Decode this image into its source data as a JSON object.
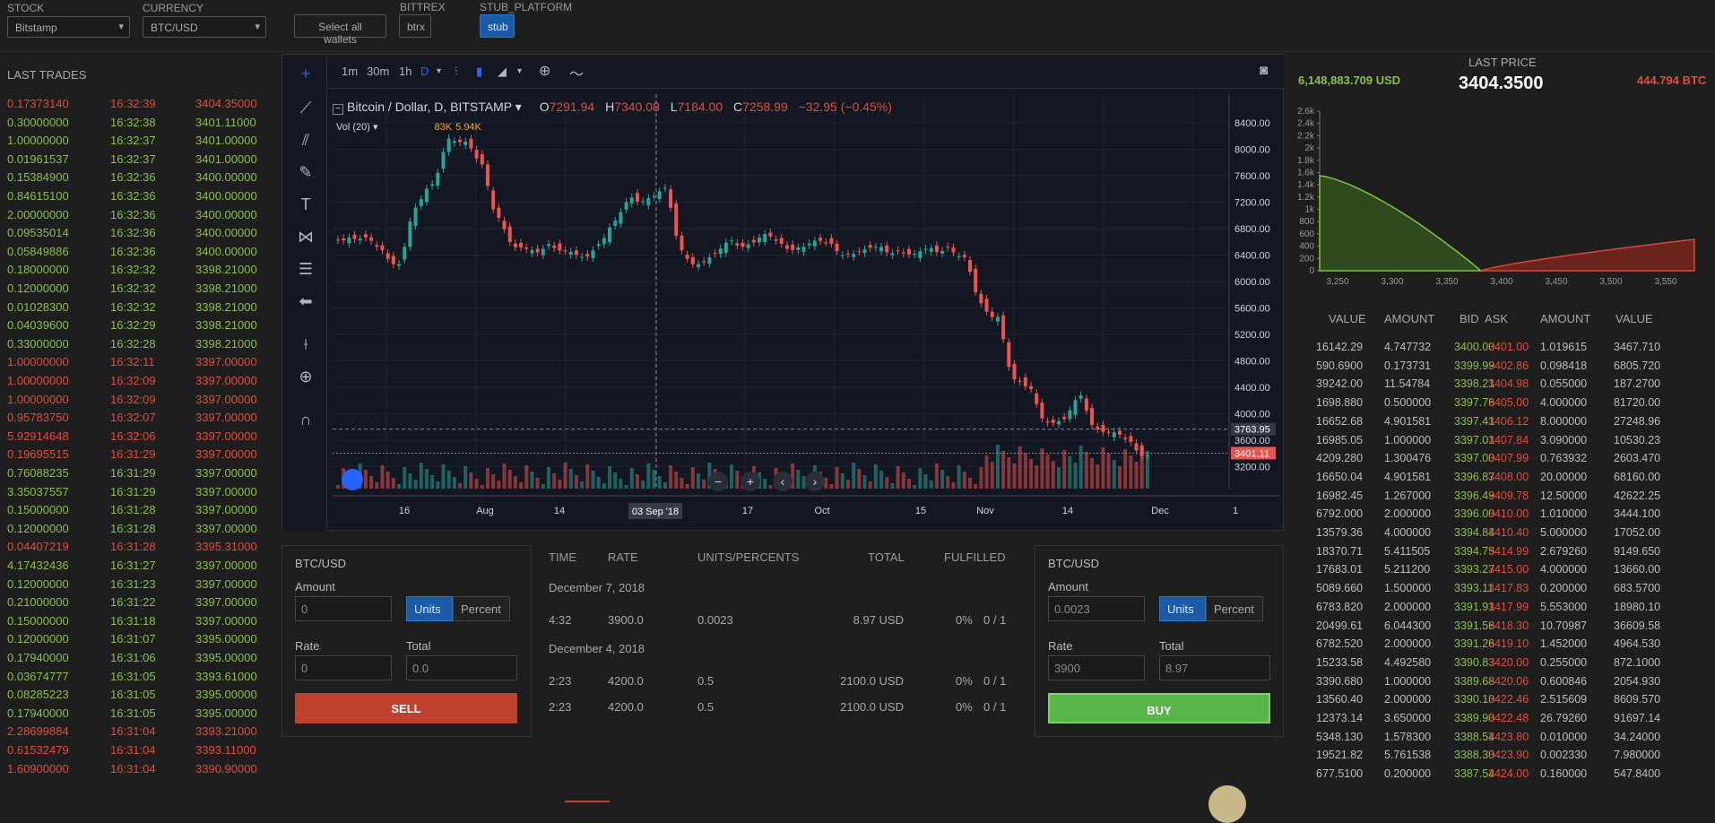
{
  "top": {
    "stock_label": "STOCK",
    "stock_value": "Bitstamp",
    "currency_label": "CURRENCY",
    "currency_value": "BTC/USD",
    "select_wallets": "Select all wallets",
    "bittrex_label": "BITTREX",
    "bittrex_btn": "btrx",
    "stub_label": "STUB_PLATFORM",
    "stub_btn": "stub"
  },
  "trades": {
    "title": "LAST TRADES",
    "rows": [
      [
        "0.17373140",
        "16:32:39",
        "3404.35000",
        "r"
      ],
      [
        "0.30000000",
        "16:32:38",
        "3401.11000",
        "g"
      ],
      [
        "1.00000000",
        "16:32:37",
        "3401.00000",
        "g"
      ],
      [
        "0.01961537",
        "16:32:37",
        "3401.00000",
        "g"
      ],
      [
        "0.15384900",
        "16:32:36",
        "3400.00000",
        "g"
      ],
      [
        "0.84615100",
        "16:32:36",
        "3400.00000",
        "g"
      ],
      [
        "2.00000000",
        "16:32:36",
        "3400.00000",
        "g"
      ],
      [
        "0.09535014",
        "16:32:36",
        "3400.00000",
        "g"
      ],
      [
        "0.05849886",
        "16:32:36",
        "3400.00000",
        "g"
      ],
      [
        "0.18000000",
        "16:32:32",
        "3398.21000",
        "g"
      ],
      [
        "0.12000000",
        "16:32:32",
        "3398.21000",
        "g"
      ],
      [
        "0.01028300",
        "16:32:32",
        "3398.21000",
        "g"
      ],
      [
        "0.04039600",
        "16:32:29",
        "3398.21000",
        "g"
      ],
      [
        "0.33000000",
        "16:32:28",
        "3398.21000",
        "g"
      ],
      [
        "1.00000000",
        "16:32:11",
        "3397.00000",
        "r"
      ],
      [
        "1.00000000",
        "16:32:09",
        "3397.00000",
        "r"
      ],
      [
        "1.00000000",
        "16:32:09",
        "3397.00000",
        "r"
      ],
      [
        "0.95783750",
        "16:32:07",
        "3397.00000",
        "r"
      ],
      [
        "5.92914648",
        "16:32:06",
        "3397.00000",
        "r"
      ],
      [
        "0.19695515",
        "16:31:29",
        "3397.00000",
        "r"
      ],
      [
        "0.76088235",
        "16:31:29",
        "3397.00000",
        "g"
      ],
      [
        "3.35037557",
        "16:31:29",
        "3397.00000",
        "g"
      ],
      [
        "0.15000000",
        "16:31:28",
        "3397.00000",
        "g"
      ],
      [
        "0.12000000",
        "16:31:28",
        "3397.00000",
        "g"
      ],
      [
        "0.04407219",
        "16:31:28",
        "3395.31000",
        "r"
      ],
      [
        "4.17432436",
        "16:31:27",
        "3397.00000",
        "g"
      ],
      [
        "0.12000000",
        "16:31:23",
        "3397.00000",
        "g"
      ],
      [
        "0.21000000",
        "16:31:22",
        "3397.00000",
        "g"
      ],
      [
        "0.15000000",
        "16:31:18",
        "3397.00000",
        "g"
      ],
      [
        "0.12000000",
        "16:31:07",
        "3395.00000",
        "g"
      ],
      [
        "0.17940000",
        "16:31:06",
        "3395.00000",
        "g"
      ],
      [
        "0.03674777",
        "16:31:05",
        "3393.61000",
        "g"
      ],
      [
        "0.08285223",
        "16:31:05",
        "3395.00000",
        "g"
      ],
      [
        "0.17940000",
        "16:31:05",
        "3395.00000",
        "g"
      ],
      [
        "2.28699884",
        "16:31:04",
        "3393.21000",
        "r"
      ],
      [
        "0.61532479",
        "16:31:04",
        "3393.11000",
        "r"
      ],
      [
        "1.60900000",
        "16:31:04",
        "3390.90000",
        "r"
      ]
    ]
  },
  "chart": {
    "tf": [
      "1m",
      "30m",
      "1h",
      "D"
    ],
    "title": "Bitcoin / Dollar, D, BITSTAMP",
    "o_label": "O",
    "o": "7291.94",
    "h_label": "H",
    "h": "7340.08",
    "l_label": "L",
    "l": "7184.00",
    "c_label": "C",
    "c": "7258.99",
    "chg": "−32.95 (−0.45%)",
    "vol_label": "Vol (20)",
    "vol": "5.94K",
    "vol_cross": "83K",
    "price_labels": [
      "8400.00",
      "8000.00",
      "7600.00",
      "7200.00",
      "6800.00",
      "6400.00",
      "6000.00",
      "5600.00",
      "5200.00",
      "4800.00",
      "4400.00",
      "4000.00",
      "3600.00",
      "3200.00"
    ],
    "cross_price": "3763.95",
    "last_price": "3401.11",
    "date_labels": [
      "16",
      "Aug",
      "14",
      "17",
      "Oct",
      "15",
      "Nov",
      "14",
      "Dec"
    ],
    "cross_date": "03 Sep '18",
    "axis_edge": "1"
  },
  "chart_data": {
    "type": "candlestick",
    "title": "Bitcoin / Dollar, D, BITSTAMP",
    "xlabel": "",
    "ylabel": "",
    "ylim": [
      3000,
      8700
    ],
    "x_ticks": [
      "16",
      "Aug",
      "14",
      "03 Sep '18",
      "17",
      "Oct",
      "15",
      "Nov",
      "14",
      "Dec"
    ],
    "close_approx": [
      6700,
      6650,
      6400,
      6300,
      7100,
      7400,
      8200,
      8100,
      7700,
      7000,
      6500,
      6400,
      6600,
      6450,
      6300,
      6600,
      6900,
      7200,
      7300,
      7400,
      6400,
      6300,
      6400,
      6550,
      6600,
      6700,
      6500,
      6550,
      6600,
      6500,
      6450,
      6470,
      6450,
      6500,
      6400,
      6430,
      6550,
      6350,
      5600,
      5500,
      4500,
      4300,
      3900,
      3900,
      4200,
      3800,
      3700,
      3500,
      3400
    ],
    "crosshair_price": 3763.95,
    "last_price": 3401.11
  },
  "sell": {
    "title": "BTC/USD",
    "amount_label": "Amount",
    "amount": "0",
    "units": "Units",
    "percent": "Percent",
    "rate_label": "Rate",
    "rate": "0",
    "total_label": "Total",
    "total": "0.0",
    "btn": "SELL"
  },
  "buy": {
    "title": "BTC/USD",
    "amount_label": "Amount",
    "amount": "0.0023",
    "units": "Units",
    "percent": "Percent",
    "rate_label": "Rate",
    "rate": "3900",
    "total_label": "Total",
    "total": "8.97",
    "btn": "BUY"
  },
  "history": {
    "headers": [
      "TIME",
      "RATE",
      "UNITS/PERCENTS",
      "TOTAL",
      "FULFILLED"
    ],
    "d1": "December 7, 2018",
    "r1": [
      "4:32",
      "3900.0",
      "0.0023",
      "8.97 USD",
      "0%",
      "0 / 1"
    ],
    "d2": "December 4, 2018",
    "r2": [
      "2:23",
      "4200.0",
      "0.5",
      "2100.0 USD",
      "0%",
      "0 / 1"
    ],
    "r3": [
      "2:23",
      "4200.0",
      "0.5",
      "2100.0 USD",
      "0%",
      "0 / 1"
    ]
  },
  "right": {
    "usd": "6,148,883.709 USD",
    "last_label": "LAST PRICE",
    "last": "3404.3500",
    "btc": "444.794 BTC",
    "depth_y": [
      "2.6k",
      "2.4k",
      "2.2k",
      "2k",
      "1.8k",
      "1.6k",
      "1.4k",
      "1.2k",
      "1k",
      "800",
      "600",
      "400",
      "200",
      "0"
    ],
    "depth_x": [
      "3,250",
      "3,300",
      "3,350",
      "3,400",
      "3,450",
      "3,500",
      "3,550"
    ],
    "headers": [
      "VALUE",
      "AMOUNT",
      "BID",
      "ASK",
      "AMOUNT",
      "VALUE"
    ],
    "rows": [
      [
        "16142.29",
        "4.747732",
        "3400.00",
        "3401.00",
        "1.019615",
        "3467.710"
      ],
      [
        "590.6900",
        "0.173731",
        "3399.99",
        "3402.86",
        "0.098418",
        "6805.720"
      ],
      [
        "39242.00",
        "11.54784",
        "3398.21",
        "3404.98",
        "0.055000",
        "187.2700"
      ],
      [
        "1698.880",
        "0.500000",
        "3397.76",
        "3405.00",
        "4.000000",
        "81720.00"
      ],
      [
        "16652.68",
        "4.901581",
        "3397.41",
        "3406.12",
        "8.000000",
        "27248.96"
      ],
      [
        "16985.05",
        "1.000000",
        "3397.01",
        "3407.84",
        "3.090000",
        "10530.23"
      ],
      [
        "4209.280",
        "1.300476",
        "3397.00",
        "3407.99",
        "0.763932",
        "2603.470"
      ],
      [
        "16650.04",
        "4.901581",
        "3396.87",
        "3408.00",
        "20.00000",
        "68160.00"
      ],
      [
        "16982.45",
        "1.267000",
        "3396.49",
        "3409.78",
        "12.50000",
        "42622.25"
      ],
      [
        "6792.000",
        "2.000000",
        "3396.00",
        "3410.00",
        "1.010000",
        "3444.100"
      ],
      [
        "13579.36",
        "4.000000",
        "3394.84",
        "3410.40",
        "5.000000",
        "17052.00"
      ],
      [
        "18370.71",
        "5.411505",
        "3394.75",
        "3414.99",
        "2.679260",
        "9149.650"
      ],
      [
        "17683.01",
        "5.211200",
        "3393.27",
        "3415.00",
        "4.000000",
        "13660.00"
      ],
      [
        "5089.660",
        "1.500000",
        "3393.11",
        "3417.83",
        "0.200000",
        "683.5700"
      ],
      [
        "6783.820",
        "2.000000",
        "3391.91",
        "3417.99",
        "5.553000",
        "18980.10"
      ],
      [
        "20499.61",
        "6.044300",
        "3391.56",
        "3418.30",
        "10.70987",
        "36609.58"
      ],
      [
        "6782.520",
        "2.000000",
        "3391.26",
        "3419.10",
        "1.452000",
        "4964.530"
      ],
      [
        "15233.58",
        "4.492580",
        "3390.83",
        "3420.00",
        "0.255000",
        "872.1000"
      ],
      [
        "3390.680",
        "1.000000",
        "3389.68",
        "3420.06",
        "0.600846",
        "2054.930"
      ],
      [
        "13560.40",
        "2.000000",
        "3390.10",
        "3422.46",
        "2.515609",
        "8609.570"
      ],
      [
        "12373.14",
        "3.650000",
        "3389.90",
        "3422.48",
        "26.79260",
        "91697.14"
      ],
      [
        "5348.130",
        "1.578300",
        "3388.54",
        "3423.80",
        "0.010000",
        "34.24000"
      ],
      [
        "19521.82",
        "5.761538",
        "3388.30",
        "3423.90",
        "0.002330",
        "7.980000"
      ],
      [
        "677.5100",
        "0.200000",
        "3387.54",
        "3424.00",
        "0.160000",
        "547.8400"
      ]
    ]
  }
}
